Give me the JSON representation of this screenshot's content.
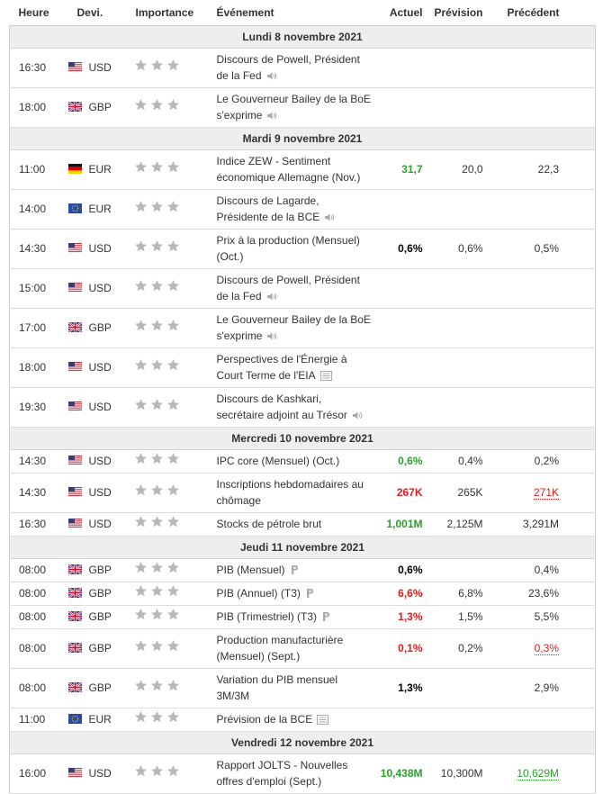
{
  "header": {
    "columns": [
      "Heure",
      "Devi.",
      "Importance",
      "Événement",
      "Actuel",
      "Prévision",
      "Précédent"
    ]
  },
  "days": [
    {
      "date": "Lundi 8 novembre 2021",
      "events": [
        {
          "time": "16:30",
          "currency": "USD",
          "event": "Discours de Powell, Président de la Fed"
        },
        {
          "time": "18:00",
          "currency": "GBP",
          "event": "Le Gouverneur Bailey de la BoE s'exprime"
        }
      ]
    },
    {
      "date": "Mardi 9 novembre 2021",
      "events": [
        {
          "time": "11:00",
          "currency": "EUR",
          "event": "Indice ZEW - Sentiment économique Allemagne (Nov.)",
          "actual": "31,7",
          "actual_color": "#2ca02c",
          "forecast": "20,0",
          "previous": "22,3"
        },
        {
          "time": "14:00",
          "currency": "EUR",
          "event": "Discours de Lagarde, Présidente de la BCE"
        },
        {
          "time": "14:30",
          "currency": "USD",
          "event": "Prix à la production (Mensuel) (Oct.)",
          "actual": "0,6%",
          "actual_color": "#000000",
          "forecast": "0,6%",
          "previous": "0,5%"
        },
        {
          "time": "15:00",
          "currency": "USD",
          "event": "Discours de Powell, Président de la Fed"
        },
        {
          "time": "17:00",
          "currency": "GBP",
          "event": "Le Gouverneur Bailey de la BoE s'exprime"
        },
        {
          "time": "18:00",
          "currency": "USD",
          "event": "Perspectives de l'Énergie à Court Terme de l'EIA"
        },
        {
          "time": "19:30",
          "currency": "USD",
          "event": "Discours de Kashkari, secrétaire adjoint au Trésor"
        }
      ]
    },
    {
      "date": "Mercredi 10 novembre 2021",
      "events": [
        {
          "time": "14:30",
          "currency": "USD",
          "event": "IPC core (Mensuel) (Oct.)",
          "actual": "0,6%",
          "actual_color": "#2ca02c",
          "forecast": "0,4%",
          "previous": "0,2%"
        },
        {
          "time": "14:30",
          "currency": "USD",
          "event": "Inscriptions hebdomadaires au chômage",
          "actual": "267K",
          "actual_color": "#e41b1b",
          "forecast": "265K",
          "previous": "271K",
          "previous_color": "#e41b1b"
        },
        {
          "time": "16:30",
          "currency": "USD",
          "event": "Stocks de pétrole brut",
          "actual": "1,001M",
          "actual_color": "#2ca02c",
          "forecast": "2,125M",
          "previous": "3,291M"
        }
      ]
    },
    {
      "date": "Jeudi 11 novembre 2021",
      "events": [
        {
          "time": "08:00",
          "currency": "GBP",
          "event": "PIB (Mensuel)",
          "actual": "0,6%",
          "actual_color": "#000000",
          "previous": "0,4%"
        },
        {
          "time": "08:00",
          "currency": "GBP",
          "event": "PIB (Annuel) (T3)",
          "actual": "6,6%",
          "actual_color": "#e41b1b",
          "forecast": "6,8%",
          "previous": "23,6%"
        },
        {
          "time": "08:00",
          "currency": "GBP",
          "event": "PIB (Trimestriel) (T3)",
          "actual": "1,3%",
          "actual_color": "#e41b1b",
          "forecast": "1,5%",
          "previous": "5,5%"
        },
        {
          "time": "08:00",
          "currency": "GBP",
          "event": "Production manufacturière (Mensuel) (Sept.)",
          "actual": "0,1%",
          "actual_color": "#e41b1b",
          "forecast": "0,2%",
          "previous": "0,3%",
          "previous_color": "#e41b1b"
        },
        {
          "time": "08:00",
          "currency": "GBP",
          "event": "Variation du PIB mensuel 3M/3M",
          "actual": "1,3%",
          "actual_color": "#000000",
          "previous": "2,9%"
        },
        {
          "time": "11:00",
          "currency": "EUR",
          "event": "Prévision de la BCE"
        }
      ]
    },
    {
      "date": "Vendredi 12 novembre 2021",
      "events": [
        {
          "time": "16:00",
          "currency": "USD",
          "event": "Rapport JOLTS - Nouvelles offres d'emploi (Sept.)",
          "actual": "10,438M",
          "actual_color": "#2ca02c",
          "forecast": "10,300M",
          "previous": "10,629M",
          "previous_color": "#2ca02c"
        }
      ]
    }
  ]
}
